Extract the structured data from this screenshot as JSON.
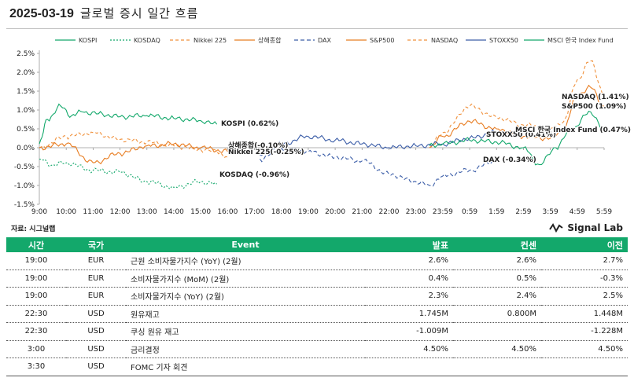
{
  "header": {
    "date": "2025-03-19",
    "subtitle": "글로벌 증시 일간 흐름"
  },
  "source": "자료: 시그널랩",
  "brand": {
    "name": "Signal Lab",
    "icon": "wave-logo-icon"
  },
  "colors": {
    "accent": "#13a86b"
  },
  "chart_data": {
    "type": "line",
    "title": "",
    "xlabel": "",
    "ylabel": "",
    "ylim": [
      -1.5,
      2.5
    ],
    "yticks": [
      -1.5,
      -1.0,
      -0.5,
      0.0,
      0.5,
      1.0,
      1.5,
      2.0,
      2.5
    ],
    "ytick_labels": [
      "-1.5%",
      "-1.0%",
      "-0.5%",
      "0.0%",
      "0.5%",
      "1.0%",
      "1.5%",
      "2.0%",
      "2.5%"
    ],
    "x_tick_labels": [
      "9:00",
      "10:00",
      "11:00",
      "12:00",
      "13:00",
      "14:00",
      "15:00",
      "16:00",
      "17:00",
      "18:00",
      "19:00",
      "20:00",
      "21:00",
      "22:00",
      "23:00",
      "23:59",
      "0:59",
      "1:59",
      "2:59",
      "3:59",
      "4:59",
      "5:59"
    ],
    "grid": false,
    "legend_position": "top",
    "series": [
      {
        "name": "KOSPI",
        "color": "#13a86b",
        "dash": "solid",
        "points": [
          [
            0,
            0.1
          ],
          [
            0.3,
            0.75
          ],
          [
            0.8,
            1.1
          ],
          [
            1.2,
            0.85
          ],
          [
            1.6,
            0.95
          ],
          [
            2.2,
            0.9
          ],
          [
            3.0,
            0.82
          ],
          [
            4.0,
            0.85
          ],
          [
            5.0,
            0.78
          ],
          [
            6.0,
            0.72
          ],
          [
            6.6,
            0.62
          ]
        ],
        "end_label": "KOSPI (0.62%)"
      },
      {
        "name": "KOSDAQ",
        "color": "#13a86b",
        "dash": "2,2",
        "points": [
          [
            0,
            -0.3
          ],
          [
            0.5,
            -0.45
          ],
          [
            1.0,
            -0.4
          ],
          [
            2.0,
            -0.6
          ],
          [
            3.0,
            -0.65
          ],
          [
            4.0,
            -0.9
          ],
          [
            5.0,
            -1.05
          ],
          [
            6.0,
            -0.9
          ],
          [
            6.6,
            -0.96
          ]
        ],
        "end_label": "KOSDAQ (-0.96%)"
      },
      {
        "name": "Nikkei 225",
        "color": "#f0913c",
        "dash": "4,3",
        "points": [
          [
            0,
            0.0
          ],
          [
            1.0,
            0.3
          ],
          [
            2.0,
            0.4
          ],
          [
            3.0,
            0.22
          ],
          [
            4.0,
            0.15
          ],
          [
            5.0,
            0.05
          ],
          [
            6.0,
            -0.05
          ],
          [
            6.6,
            -0.1
          ],
          [
            7.0,
            -0.25
          ]
        ],
        "end_label": "Nikkei 225(-0.25%)"
      },
      {
        "name": "상해종합",
        "color": "#e87d22",
        "dash": "solid",
        "points": [
          [
            0,
            0.0
          ],
          [
            1.0,
            0.1
          ],
          [
            2.0,
            -0.4
          ],
          [
            3.0,
            -0.15
          ],
          [
            4.0,
            0.05
          ],
          [
            5.0,
            0.1
          ],
          [
            6.0,
            0.0
          ],
          [
            7.0,
            -0.1
          ]
        ],
        "end_label": "상해종합(-0.10%)"
      },
      {
        "name": "DAX",
        "color": "#3c5ea8",
        "dash": "5,3",
        "points": [
          [
            8.2,
            -0.3
          ],
          [
            9.0,
            0.0
          ],
          [
            10.0,
            -0.1
          ],
          [
            11.0,
            -0.25
          ],
          [
            12.0,
            -0.35
          ],
          [
            13.0,
            -0.7
          ],
          [
            14.0,
            -0.9
          ],
          [
            14.5,
            -1.0
          ],
          [
            15.0,
            -0.75
          ],
          [
            16.0,
            -0.6
          ],
          [
            17.0,
            -0.34
          ]
        ],
        "end_label": "DAX (-0.34%)"
      },
      {
        "name": "S&P500",
        "color": "#e87d22",
        "dash": "solid",
        "points": [
          [
            14.5,
            0.0
          ],
          [
            15.0,
            0.3
          ],
          [
            16.0,
            0.7
          ],
          [
            17.0,
            0.5
          ],
          [
            18.0,
            0.3
          ],
          [
            19.0,
            0.25
          ],
          [
            19.5,
            0.5
          ],
          [
            20.0,
            1.4
          ],
          [
            20.5,
            1.6
          ],
          [
            21.0,
            1.09
          ]
        ],
        "end_label": "S&P500 (1.09%)"
      },
      {
        "name": "NASDAQ",
        "color": "#f0913c",
        "dash": "4,3",
        "points": [
          [
            14.5,
            0.0
          ],
          [
            15.0,
            0.4
          ],
          [
            16.0,
            1.1
          ],
          [
            17.0,
            0.8
          ],
          [
            18.0,
            0.6
          ],
          [
            19.0,
            0.5
          ],
          [
            19.5,
            0.7
          ],
          [
            20.0,
            1.8
          ],
          [
            20.5,
            2.3
          ],
          [
            21.0,
            1.41
          ]
        ],
        "end_label": "NASDAQ (1.41%)"
      },
      {
        "name": "STOXX50",
        "color": "#3c5ea8",
        "dash": "solid",
        "points": [
          [
            8.2,
            -0.2
          ],
          [
            9.0,
            0.1
          ],
          [
            10.0,
            0.3
          ],
          [
            11.0,
            0.2
          ],
          [
            12.0,
            0.1
          ],
          [
            13.0,
            0.0
          ],
          [
            14.0,
            0.05
          ],
          [
            15.0,
            0.1
          ],
          [
            16.0,
            0.25
          ],
          [
            17.0,
            0.41
          ]
        ],
        "end_label": "STOXX50 (0.41%)"
      },
      {
        "name": "MSCI 한국 Index Fund",
        "color": "#13a86b",
        "dash": "solid",
        "points": [
          [
            14.5,
            0.05
          ],
          [
            15.0,
            0.1
          ],
          [
            16.0,
            0.2
          ],
          [
            17.0,
            0.15
          ],
          [
            18.0,
            0.0
          ],
          [
            18.6,
            -0.45
          ],
          [
            19.2,
            0.0
          ],
          [
            19.8,
            0.5
          ],
          [
            20.5,
            0.95
          ],
          [
            21.0,
            0.47
          ]
        ],
        "end_label": "MSCI 한국 Index Fund (0.47%)"
      }
    ]
  },
  "events_table": {
    "headers": [
      "시간",
      "국가",
      "Event",
      "발표",
      "컨센",
      "이전"
    ],
    "rows": [
      [
        "19:00",
        "EUR",
        "근원 소비자물가지수 (YoY) (2월)",
        "2.6%",
        "2.6%",
        "2.7%"
      ],
      [
        "19:00",
        "EUR",
        "소비자물가지수 (MoM) (2월)",
        "0.4%",
        "0.5%",
        "-0.3%"
      ],
      [
        "19:00",
        "EUR",
        "소비자물가지수 (YoY) (2월)",
        "2.3%",
        "2.4%",
        "2.5%"
      ],
      [
        "22:30",
        "USD",
        "원유재고",
        "1.745M",
        "0.800M",
        "1.448M"
      ],
      [
        "22:30",
        "USD",
        "쿠싱 원유 재고",
        "-1.009M",
        "",
        "-1.228M"
      ],
      [
        "3:00",
        "USD",
        "금리결정",
        "4.50%",
        "4.50%",
        "4.50%"
      ],
      [
        "3:30",
        "USD",
        "FOMC 기자 회견",
        "",
        "",
        ""
      ]
    ]
  }
}
